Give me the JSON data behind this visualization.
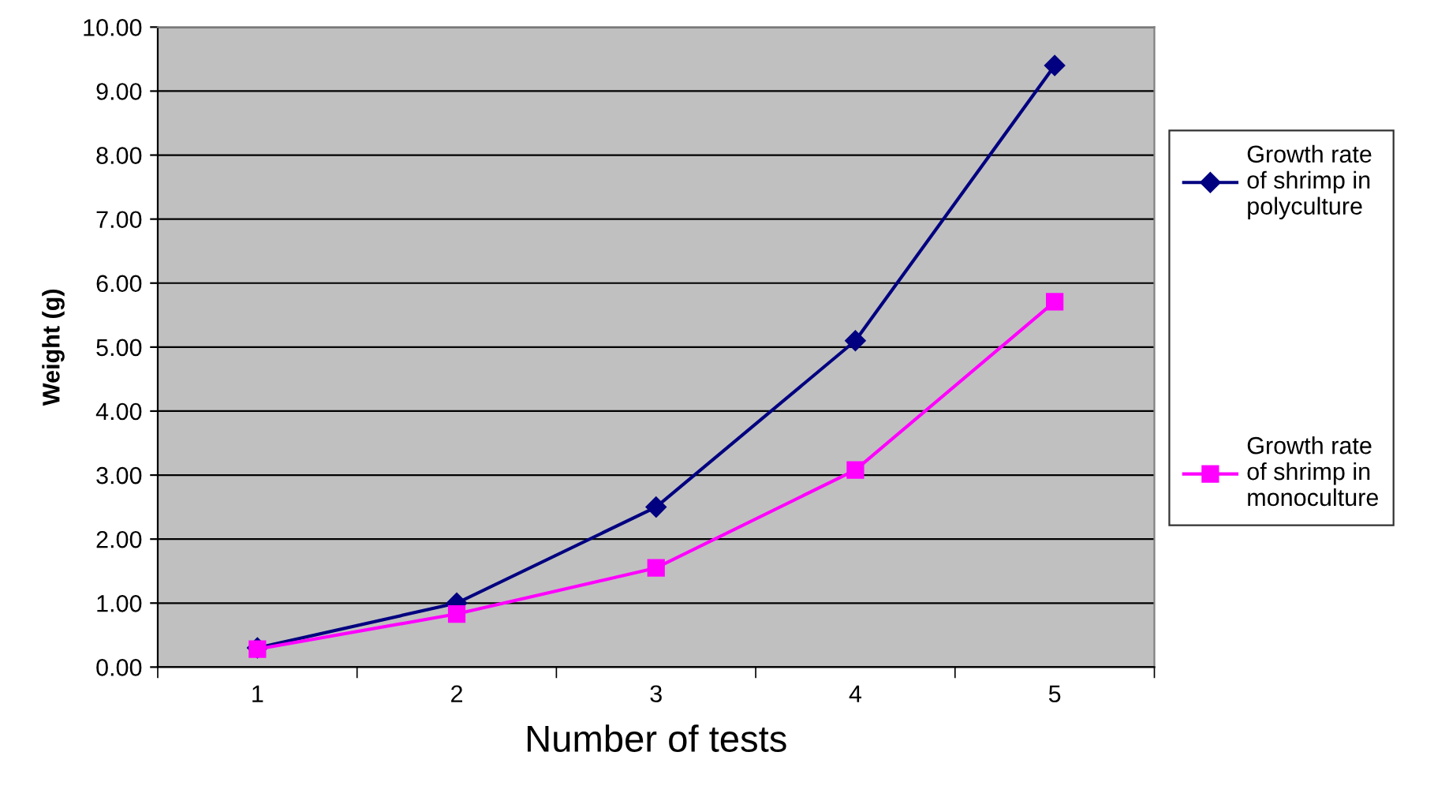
{
  "chart_data": {
    "type": "line",
    "xlabel": "Number of tests",
    "ylabel": "Weight (g)",
    "categories": [
      "1",
      "2",
      "3",
      "4",
      "5"
    ],
    "series": [
      {
        "name": "Growth rate\nof shrimp in\npolyculture",
        "color": "#000080",
        "marker": "diamond",
        "values": [
          0.3,
          1.0,
          2.5,
          5.1,
          9.4
        ]
      },
      {
        "name": "Growth rate\nof shrimp in\nmonoculture",
        "color": "#ff00ff",
        "marker": "square",
        "values": [
          0.28,
          0.83,
          1.55,
          3.08,
          5.71
        ]
      }
    ],
    "ylim": [
      0,
      10
    ],
    "yticks": [
      {
        "value": 0,
        "label": "0.00"
      },
      {
        "value": 1,
        "label": "1.00"
      },
      {
        "value": 2,
        "label": "2.00"
      },
      {
        "value": 3,
        "label": "3.00"
      },
      {
        "value": 4,
        "label": "4.00"
      },
      {
        "value": 5,
        "label": "5.00"
      },
      {
        "value": 6,
        "label": "6.00"
      },
      {
        "value": 7,
        "label": "7.00"
      },
      {
        "value": 8,
        "label": "8.00"
      },
      {
        "value": 9,
        "label": "9.00"
      },
      {
        "value": 10,
        "label": "10.00"
      }
    ],
    "grid": "y",
    "legend": "right",
    "line_style": "solid"
  }
}
